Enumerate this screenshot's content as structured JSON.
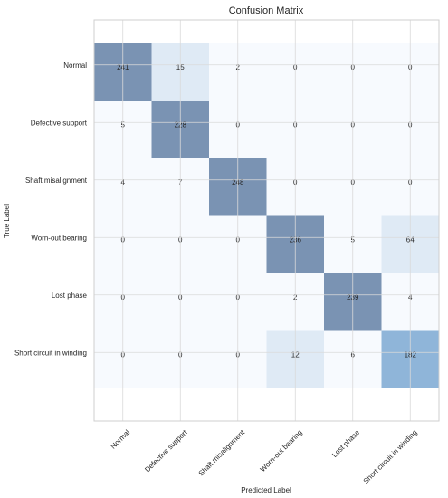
{
  "chart_data": {
    "type": "heatmap",
    "title": "Confusion Matrix",
    "xlabel": "Predicted Label",
    "ylabel": "True Label",
    "row_labels": [
      "Normal",
      "Defective support",
      "Shaft misalignment",
      "Worn-out bearing",
      "Lost phase",
      "Short circuit in winding"
    ],
    "col_labels": [
      "Normal",
      "Defective support",
      "Shaft misalignment",
      "Worn-out bearing",
      "Lost phase",
      "Short circuit in winding"
    ],
    "values": [
      [
        241,
        15,
        2,
        0,
        0,
        0
      ],
      [
        5,
        228,
        0,
        0,
        0,
        0
      ],
      [
        4,
        7,
        248,
        0,
        0,
        0
      ],
      [
        0,
        0,
        0,
        236,
        5,
        64
      ],
      [
        0,
        0,
        0,
        2,
        239,
        4
      ],
      [
        0,
        0,
        0,
        12,
        6,
        182
      ]
    ],
    "grid": true,
    "colors": {
      "high": "#7a93b3",
      "low": "#f7fafe",
      "mid": "#dfeaf5",
      "short_circuit_diag": "#8fb5d9"
    }
  }
}
